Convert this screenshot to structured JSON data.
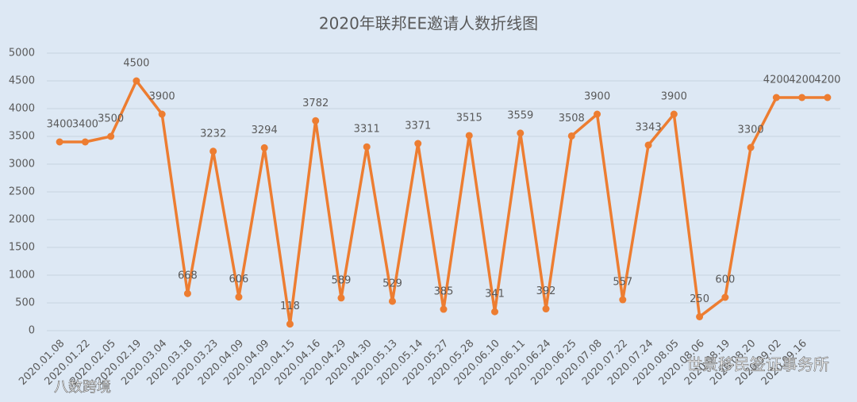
{
  "chart_data": {
    "type": "line",
    "title": "2020年联邦EE邀请人数折线图",
    "categories": [
      "2020.01.08",
      "2020.01.22",
      "2020.02.05",
      "2020.02.19",
      "2020.03.04",
      "2020.03.18",
      "2020.03.23",
      "2020.04.09",
      "2020.04.09",
      "2020.04.15",
      "2020.04.16",
      "2020.04.29",
      "2020.04.30",
      "2020.05.13",
      "2020.05.14",
      "2020.05.27",
      "2020.05.28",
      "2020.06.10",
      "2020.06.11",
      "2020.06.24",
      "2020.06.25",
      "2020.07.08",
      "2020.07.22",
      "2020.07.24",
      "2020.08.05",
      "2020.08.06",
      "2020.08.19",
      "2020.08.20",
      "2020.09.02",
      "2020.09.16",
      null
    ],
    "values": [
      3400,
      3400,
      3500,
      4500,
      3900,
      668,
      3232,
      606,
      3294,
      118,
      3782,
      589,
      3311,
      529,
      3371,
      385,
      3515,
      341,
      3559,
      392,
      3508,
      3900,
      557,
      3343,
      3900,
      250,
      600,
      3300,
      4200,
      4200,
      4200
    ],
    "color": "#ed7d31",
    "ylim": [
      0,
      5000
    ],
    "yticks": [
      0,
      500,
      1000,
      1500,
      2000,
      2500,
      3000,
      3500,
      4000,
      4500,
      5000
    ],
    "grid": true,
    "watermarks": [
      "世景移民签证事务所",
      "八数跨境"
    ]
  }
}
